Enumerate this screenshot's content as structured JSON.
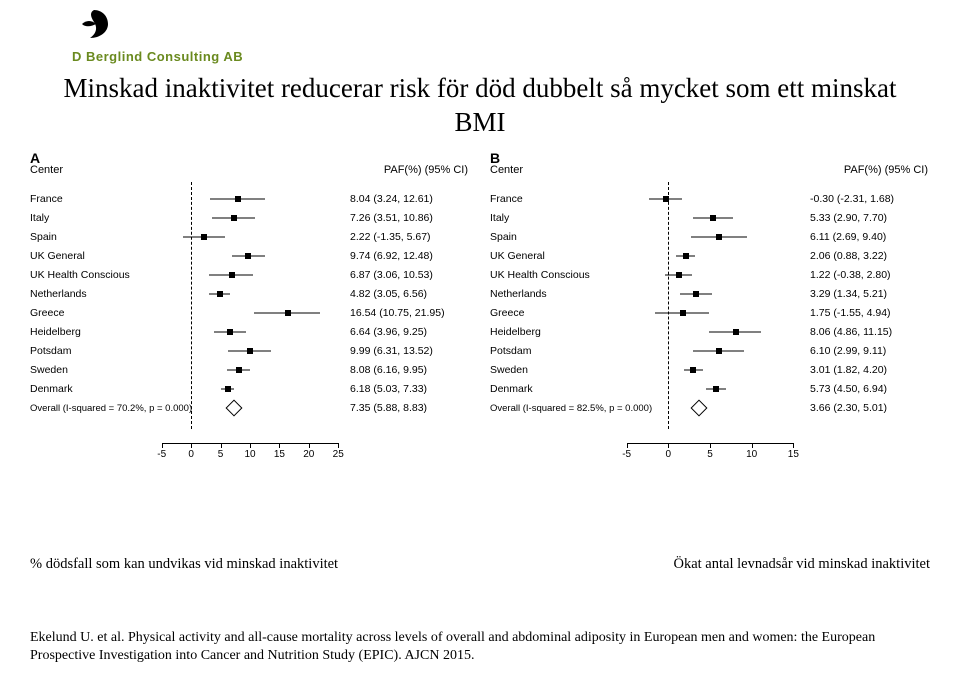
{
  "logo_text": "D Berglind Consulting AB",
  "title_line1": "Minskad inaktivitet reducerar risk för död dubbelt så mycket som ett minskat",
  "title_line2": "BMI",
  "sublabel_left": "% dödsfall som kan undvikas vid minskad inaktivitet",
  "sublabel_right": "Ökat antal levnadsår vid minskad inaktivitet",
  "citation": "Ekelund U. et al. Physical activity and all-cause mortality across levels of overall and abdominal adiposity in European men and women: the European Prospective Investigation into Cancer and Nutrition Study (EPIC). AJCN 2015.",
  "colors": {
    "background": "#ffffff",
    "text": "#000000",
    "logo_green": "#6a8a1f",
    "marker": "#000000",
    "refline": "#000000"
  },
  "panelA": {
    "letter": "A",
    "header_left": "Center",
    "header_right": "PAF(%) (95% CI)",
    "xmin": -7,
    "xmax": 27,
    "ref": 0,
    "ticks": [
      -5,
      0,
      5,
      10,
      15,
      20,
      25
    ],
    "rows": [
      {
        "label": "France",
        "est": 8.04,
        "lo": 3.24,
        "hi": 12.61,
        "val": "8.04 (3.24, 12.61)"
      },
      {
        "label": "Italy",
        "est": 7.26,
        "lo": 3.51,
        "hi": 10.86,
        "val": "7.26 (3.51, 10.86)"
      },
      {
        "label": "Spain",
        "est": 2.22,
        "lo": -1.35,
        "hi": 5.67,
        "val": "2.22 (-1.35, 5.67)"
      },
      {
        "label": "UK General",
        "est": 9.74,
        "lo": 6.92,
        "hi": 12.48,
        "val": "9.74 (6.92, 12.48)"
      },
      {
        "label": "UK Health Conscious",
        "est": 6.87,
        "lo": 3.06,
        "hi": 10.53,
        "val": "6.87 (3.06, 10.53)"
      },
      {
        "label": "Netherlands",
        "est": 4.82,
        "lo": 3.05,
        "hi": 6.56,
        "val": "4.82 (3.05, 6.56)"
      },
      {
        "label": "Greece",
        "est": 16.54,
        "lo": 10.75,
        "hi": 21.95,
        "val": "16.54 (10.75, 21.95)"
      },
      {
        "label": "Heidelberg",
        "est": 6.64,
        "lo": 3.96,
        "hi": 9.25,
        "val": "6.64 (3.96, 9.25)"
      },
      {
        "label": "Potsdam",
        "est": 9.99,
        "lo": 6.31,
        "hi": 13.52,
        "val": "9.99 (6.31, 13.52)"
      },
      {
        "label": "Sweden",
        "est": 8.08,
        "lo": 6.16,
        "hi": 9.95,
        "val": "8.08 (6.16, 9.95)"
      },
      {
        "label": "Denmark",
        "est": 6.18,
        "lo": 5.03,
        "hi": 7.33,
        "val": "6.18 (5.03, 7.33)"
      }
    ],
    "overall": {
      "label": "Overall  (I-squared = 70.2%, p = 0.000)",
      "est": 7.35,
      "lo": 5.88,
      "hi": 8.83,
      "val": "7.35 (5.88, 8.83)"
    }
  },
  "panelB": {
    "letter": "B",
    "header_left": "Center",
    "header_right": "PAF(%) (95% CI)",
    "xmin": -7,
    "xmax": 17,
    "ref": 0,
    "ticks": [
      -5,
      0,
      5,
      10,
      15
    ],
    "rows": [
      {
        "label": "France",
        "est": -0.3,
        "lo": -2.31,
        "hi": 1.68,
        "val": "-0.30 (-2.31, 1.68)"
      },
      {
        "label": "Italy",
        "est": 5.33,
        "lo": 2.9,
        "hi": 7.7,
        "val": "5.33 (2.90, 7.70)"
      },
      {
        "label": "Spain",
        "est": 6.11,
        "lo": 2.69,
        "hi": 9.4,
        "val": "6.11 (2.69, 9.40)"
      },
      {
        "label": "UK General",
        "est": 2.06,
        "lo": 0.88,
        "hi": 3.22,
        "val": "2.06 (0.88, 3.22)"
      },
      {
        "label": "UK Health Conscious",
        "est": 1.22,
        "lo": -0.38,
        "hi": 2.8,
        "val": "1.22 (-0.38, 2.80)"
      },
      {
        "label": "Netherlands",
        "est": 3.29,
        "lo": 1.34,
        "hi": 5.21,
        "val": "3.29 (1.34, 5.21)"
      },
      {
        "label": "Greece",
        "est": 1.75,
        "lo": -1.55,
        "hi": 4.94,
        "val": "1.75 (-1.55, 4.94)"
      },
      {
        "label": "Heidelberg",
        "est": 8.06,
        "lo": 4.86,
        "hi": 11.15,
        "val": "8.06 (4.86, 11.15)"
      },
      {
        "label": "Potsdam",
        "est": 6.1,
        "lo": 2.99,
        "hi": 9.11,
        "val": "6.10 (2.99, 9.11)"
      },
      {
        "label": "Sweden",
        "est": 3.01,
        "lo": 1.82,
        "hi": 4.2,
        "val": "3.01 (1.82, 4.20)"
      },
      {
        "label": "Denmark",
        "est": 5.73,
        "lo": 4.5,
        "hi": 6.94,
        "val": "5.73 (4.50, 6.94)"
      }
    ],
    "overall": {
      "label": "Overall  (I-squared = 82.5%, p = 0.000)",
      "est": 3.66,
      "lo": 2.3,
      "hi": 5.01,
      "val": "3.66 (2.30, 5.01)"
    }
  }
}
